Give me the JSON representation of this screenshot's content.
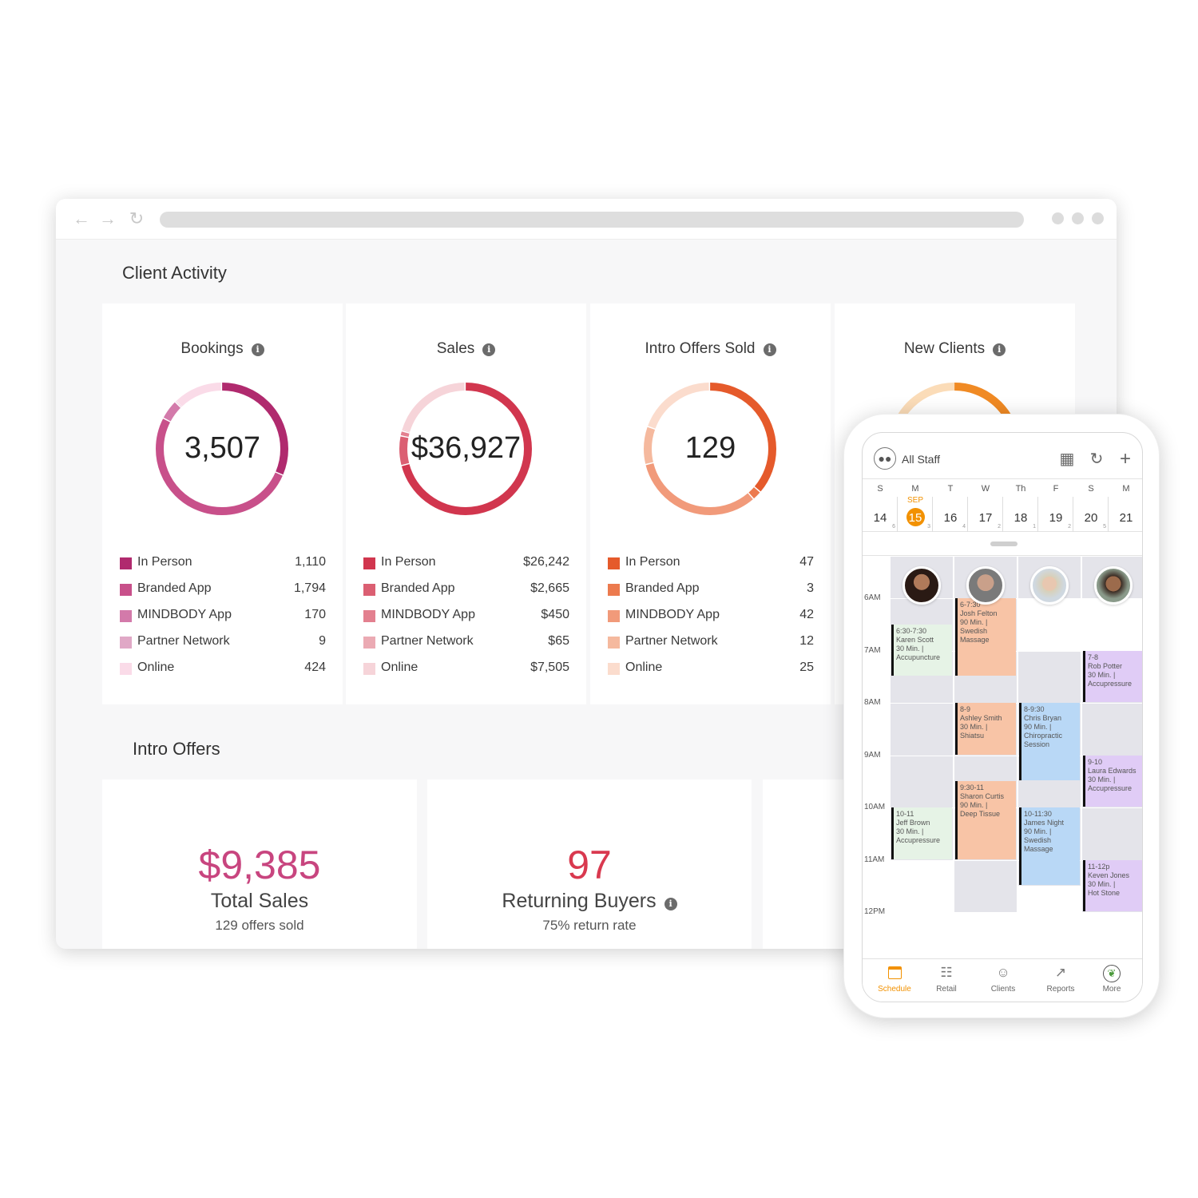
{
  "client_activity": {
    "title": "Client Activity",
    "cards": [
      {
        "title": "Bookings",
        "total": "3,507",
        "colors": [
          "#b02a6e",
          "#c8508a",
          "#d37aaa",
          "#e0a8c6",
          "#fadbe8"
        ],
        "segments": [
          1110,
          1794,
          170,
          9,
          424
        ],
        "legend": [
          {
            "label": "In Person",
            "value": "1,110"
          },
          {
            "label": "Branded App",
            "value": "1,794"
          },
          {
            "label": "MINDBODY App",
            "value": "170"
          },
          {
            "label": "Partner Network",
            "value": "9"
          },
          {
            "label": "Online",
            "value": "424"
          }
        ]
      },
      {
        "title": "Sales",
        "total": "$36,927",
        "colors": [
          "#d1364e",
          "#db5f72",
          "#e3808f",
          "#ebaab3",
          "#f6d4d9"
        ],
        "segments": [
          26242,
          2665,
          450,
          65,
          7505
        ],
        "legend": [
          {
            "label": "In Person",
            "value": "$26,242"
          },
          {
            "label": "Branded App",
            "value": "$2,665"
          },
          {
            "label": "MINDBODY App",
            "value": "$450"
          },
          {
            "label": "Partner Network",
            "value": "$65"
          },
          {
            "label": "Online",
            "value": "$7,505"
          }
        ]
      },
      {
        "title": "Intro Offers Sold",
        "total": "129",
        "colors": [
          "#e55a2b",
          "#ec7a4e",
          "#f19a7a",
          "#f5b99e",
          "#fbdccd"
        ],
        "segments": [
          47,
          3,
          42,
          12,
          25
        ],
        "legend": [
          {
            "label": "In Person",
            "value": "47"
          },
          {
            "label": "Branded App",
            "value": "3"
          },
          {
            "label": "MINDBODY App",
            "value": "42"
          },
          {
            "label": "Partner Network",
            "value": "12"
          },
          {
            "label": "Online",
            "value": "25"
          }
        ]
      },
      {
        "title": "New Clients",
        "colors": [
          "#f08a24",
          "#fbdcb8"
        ]
      }
    ]
  },
  "intro_offers": {
    "title": "Intro Offers",
    "cards": [
      {
        "value": "$9,385",
        "label": "Total Sales",
        "sub": "129 offers sold",
        "color": "#c8457f"
      },
      {
        "value": "97",
        "label": "Returning Buyers",
        "sub": "75% return rate",
        "color": "#d9394f"
      }
    ]
  },
  "phone": {
    "staff_label": "All Staff",
    "month": "SEP",
    "days": [
      {
        "letter": "S",
        "num": "14",
        "count": "6"
      },
      {
        "letter": "M",
        "num": "15",
        "count": "3",
        "today": true
      },
      {
        "letter": "T",
        "num": "16",
        "count": "4"
      },
      {
        "letter": "W",
        "num": "17",
        "count": "2"
      },
      {
        "letter": "Th",
        "num": "18",
        "count": "1"
      },
      {
        "letter": "F",
        "num": "19",
        "count": "2"
      },
      {
        "letter": "S",
        "num": "20",
        "count": "5"
      },
      {
        "letter": "M",
        "num": "21",
        "count": ""
      }
    ],
    "times": [
      "6AM",
      "7AM",
      "8AM",
      "9AM",
      "10AM",
      "11AM",
      "12PM"
    ],
    "appointments": [
      {
        "col": 0,
        "start": 6.5,
        "end": 7.5,
        "color": "#e6f3e6",
        "lines": [
          "6:30-7:30",
          "Karen Scott",
          "30 Min. |",
          "Accupuncture"
        ]
      },
      {
        "col": 0,
        "start": 10,
        "end": 11,
        "color": "#e6f3e6",
        "lines": [
          "10-11",
          "Jeff Brown",
          "30 Min. |",
          "Accupressure"
        ]
      },
      {
        "col": 1,
        "start": 6,
        "end": 7.5,
        "color": "#f8c4a6",
        "lines": [
          "6-7:30",
          "Josh Felton",
          "90 Min. |",
          "Swedish",
          "Massage"
        ]
      },
      {
        "col": 1,
        "start": 8,
        "end": 9,
        "color": "#f8c4a6",
        "lines": [
          "8-9",
          "Ashley Smith",
          "30 Min. |",
          "Shiatsu"
        ]
      },
      {
        "col": 1,
        "start": 9.5,
        "end": 11,
        "color": "#f8c4a6",
        "lines": [
          "9:30-11",
          "Sharon Curtis",
          "90 Min. |",
          "Deep Tissue"
        ]
      },
      {
        "col": 2,
        "start": 8,
        "end": 9.5,
        "color": "#b9d8f6",
        "lines": [
          "8-9:30",
          "Chris Bryan",
          "90 Min. |",
          "Chiropractic",
          "Session"
        ]
      },
      {
        "col": 2,
        "start": 10,
        "end": 11.5,
        "color": "#b9d8f6",
        "lines": [
          "10-11:30",
          "James Night",
          "90 Min. |",
          "Swedish",
          "Massage"
        ]
      },
      {
        "col": 3,
        "start": 7,
        "end": 8,
        "color": "#e0ccf6",
        "lines": [
          "7-8",
          "Rob Potter",
          "30 Min. |",
          "Accupressure"
        ]
      },
      {
        "col": 3,
        "start": 9,
        "end": 10,
        "color": "#e0ccf6",
        "lines": [
          "9-10",
          "Laura Edwards",
          "30 Min. |",
          "Accupressure"
        ]
      },
      {
        "col": 3,
        "start": 11,
        "end": 12,
        "color": "#e0ccf6",
        "lines": [
          "11-12p",
          "Keven Jones",
          "30 Min. |",
          "Hot Stone"
        ]
      }
    ],
    "tabs": [
      {
        "label": "Schedule",
        "icon": "calendar-icon",
        "active": true
      },
      {
        "label": "Retail",
        "icon": "register-icon"
      },
      {
        "label": "Clients",
        "icon": "person-icon"
      },
      {
        "label": "Reports",
        "icon": "chart-icon"
      },
      {
        "label": "More",
        "icon": "leaf-icon"
      }
    ],
    "accent": "#f29100"
  }
}
